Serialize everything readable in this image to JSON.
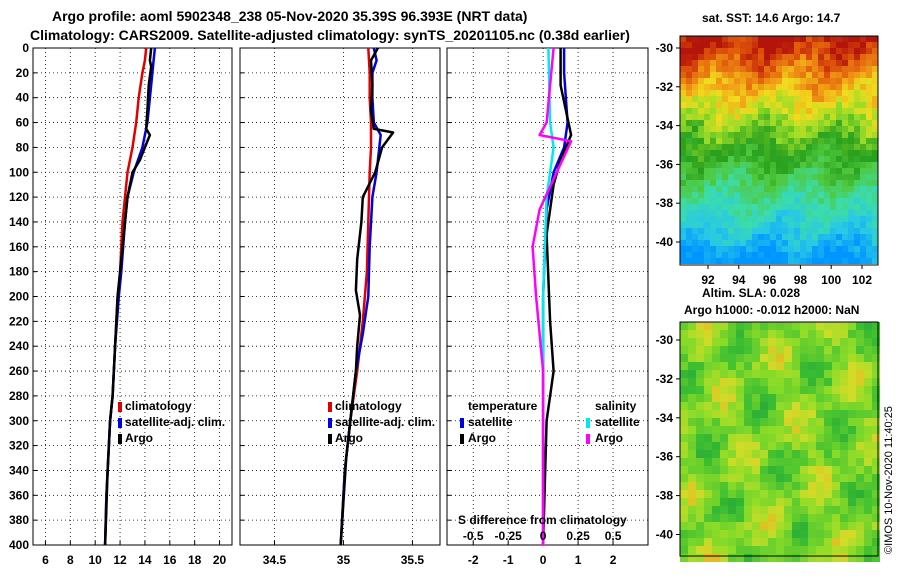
{
  "header": {
    "line1": "Argo profile: aoml 5902348_238 05-Nov-2020 35.39S 96.393E (NRT data)",
    "line2": "Climatology: CARS2009. Satellite-adjusted climatology: synTS_20201105.nc (0.38d earlier)"
  },
  "colors": {
    "climatology": "#e00000",
    "satellite": "#0000e0",
    "argo": "#000000",
    "sat_salinity": "#00e8f0",
    "argo_salinity": "#ff00ff"
  },
  "chart_data": [
    {
      "type": "line",
      "name": "temperature-profile",
      "xlim": [
        5,
        21
      ],
      "ylim": [
        400,
        0
      ],
      "xticks": [
        6,
        8,
        10,
        12,
        14,
        16,
        18,
        20
      ],
      "yticks": [
        0,
        20,
        40,
        60,
        80,
        100,
        120,
        140,
        160,
        180,
        200,
        220,
        240,
        260,
        280,
        300,
        320,
        340,
        360,
        380,
        400
      ],
      "legend": [
        "climatology",
        "satellite-adj. clim.",
        "Argo"
      ],
      "series": [
        {
          "name": "climatology",
          "color": "climatology",
          "points": [
            [
              14.1,
              0
            ],
            [
              14.0,
              10
            ],
            [
              13.8,
              20
            ],
            [
              13.5,
              40
            ],
            [
              13.3,
              60
            ],
            [
              13.0,
              80
            ],
            [
              12.6,
              100
            ],
            [
              12.4,
              120
            ],
            [
              12.2,
              140
            ],
            [
              12.0,
              180
            ],
            [
              11.8,
              200
            ],
            [
              11.6,
              240
            ],
            [
              11.4,
              280
            ],
            [
              11.2,
              300
            ],
            [
              11.1,
              320
            ],
            [
              10.9,
              360
            ],
            [
              10.8,
              400
            ]
          ]
        },
        {
          "name": "satellite-adj. clim.",
          "color": "satellite",
          "points": [
            [
              14.8,
              0
            ],
            [
              14.7,
              10
            ],
            [
              14.6,
              20
            ],
            [
              14.4,
              40
            ],
            [
              14.2,
              60
            ],
            [
              13.8,
              80
            ],
            [
              13.1,
              100
            ],
            [
              12.6,
              120
            ],
            [
              12.4,
              140
            ],
            [
              12.1,
              180
            ],
            [
              11.9,
              200
            ],
            [
              11.6,
              240
            ],
            [
              11.4,
              280
            ],
            [
              11.2,
              300
            ],
            [
              11.1,
              320
            ],
            [
              10.9,
              360
            ],
            [
              10.8,
              400
            ]
          ]
        },
        {
          "name": "Argo",
          "color": "argo",
          "points": [
            [
              14.5,
              0
            ],
            [
              14.4,
              10
            ],
            [
              14.5,
              15
            ],
            [
              14.3,
              30
            ],
            [
              14.2,
              50
            ],
            [
              14.1,
              65
            ],
            [
              14.4,
              70
            ],
            [
              14.0,
              80
            ],
            [
              13.6,
              90
            ],
            [
              13.0,
              100
            ],
            [
              12.6,
              120
            ],
            [
              12.3,
              150
            ],
            [
              12.0,
              180
            ],
            [
              11.8,
              200
            ],
            [
              11.6,
              240
            ],
            [
              11.4,
              280
            ],
            [
              11.2,
              300
            ],
            [
              11.0,
              340
            ],
            [
              10.9,
              370
            ],
            [
              10.8,
              400
            ]
          ]
        }
      ]
    },
    {
      "type": "line",
      "name": "salinity-profile",
      "xlim": [
        34.25,
        35.7
      ],
      "ylim": [
        400,
        0
      ],
      "xticks": [
        34.5,
        35,
        35.5
      ],
      "legend": [
        "climatology",
        "satellite-adj. clim.",
        "Argo"
      ],
      "series": [
        {
          "name": "climatology",
          "color": "climatology",
          "points": [
            [
              35.18,
              0
            ],
            [
              35.19,
              20
            ],
            [
              35.19,
              40
            ],
            [
              35.2,
              60
            ],
            [
              35.2,
              80
            ],
            [
              35.19,
              100
            ],
            [
              35.18,
              140
            ],
            [
              35.17,
              180
            ],
            [
              35.14,
              220
            ],
            [
              35.1,
              260
            ],
            [
              35.05,
              300
            ],
            [
              35.01,
              340
            ],
            [
              34.98,
              400
            ]
          ]
        },
        {
          "name": "satellite-adj. clim.",
          "color": "satellite",
          "points": [
            [
              35.22,
              0
            ],
            [
              35.24,
              10
            ],
            [
              35.21,
              20
            ],
            [
              35.21,
              40
            ],
            [
              35.22,
              60
            ],
            [
              35.27,
              70
            ],
            [
              35.26,
              80
            ],
            [
              35.24,
              100
            ],
            [
              35.21,
              120
            ],
            [
              35.19,
              160
            ],
            [
              35.18,
              200
            ],
            [
              35.14,
              230
            ],
            [
              35.09,
              260
            ],
            [
              35.05,
              300
            ],
            [
              35.01,
              340
            ],
            [
              34.98,
              400
            ]
          ]
        },
        {
          "name": "Argo",
          "color": "argo",
          "points": [
            [
              35.25,
              0
            ],
            [
              35.2,
              10
            ],
            [
              35.21,
              30
            ],
            [
              35.2,
              50
            ],
            [
              35.22,
              65
            ],
            [
              35.36,
              68
            ],
            [
              35.28,
              80
            ],
            [
              35.23,
              100
            ],
            [
              35.14,
              120
            ],
            [
              35.13,
              140
            ],
            [
              35.1,
              170
            ],
            [
              35.09,
              195
            ],
            [
              35.12,
              215
            ],
            [
              35.1,
              240
            ],
            [
              35.09,
              260
            ],
            [
              35.06,
              290
            ],
            [
              35.02,
              330
            ],
            [
              34.98,
              400
            ]
          ]
        }
      ]
    },
    {
      "type": "line",
      "name": "difference-from-climatology",
      "xlim": [
        -2.75,
        3
      ],
      "ylim": [
        400,
        0
      ],
      "xticks": [
        -2,
        -1,
        0,
        1,
        2
      ],
      "xtick_labels_s": [
        "-0.5",
        "-0.25",
        "0",
        "0.25",
        "0.5"
      ],
      "xlabel_s": "S difference from climatology",
      "legend_temperature": {
        "title": "temperature",
        "items": [
          "satellite",
          "Argo"
        ]
      },
      "legend_salinity": {
        "title": "salinity",
        "items": [
          "satellite",
          "Argo"
        ]
      },
      "series": [
        {
          "name": "temperature satellite",
          "color": "satellite",
          "points": [
            [
              0.6,
              0
            ],
            [
              0.6,
              20
            ],
            [
              0.7,
              60
            ],
            [
              0.6,
              80
            ],
            [
              0.3,
              100
            ],
            [
              0.1,
              130
            ],
            [
              0.0,
              200
            ],
            [
              0.0,
              400
            ]
          ]
        },
        {
          "name": "temperature Argo",
          "color": "argo",
          "points": [
            [
              0.5,
              0
            ],
            [
              0.5,
              30
            ],
            [
              0.8,
              70
            ],
            [
              0.5,
              90
            ],
            [
              0.3,
              110
            ],
            [
              0.1,
              150
            ],
            [
              0.2,
              220
            ],
            [
              0.3,
              260
            ],
            [
              0.1,
              300
            ],
            [
              0.0,
              400
            ]
          ]
        },
        {
          "name": "salinity satellite",
          "color": "sat_salinity",
          "points": [
            [
              0.15,
              0
            ],
            [
              0.2,
              60
            ],
            [
              0.3,
              80
            ],
            [
              0.1,
              120
            ],
            [
              0.0,
              200
            ],
            [
              0.0,
              400
            ]
          ]
        },
        {
          "name": "salinity Argo",
          "color": "argo_salinity",
          "points": [
            [
              0.3,
              0
            ],
            [
              0.1,
              60
            ],
            [
              -0.1,
              70
            ],
            [
              0.8,
              75
            ],
            [
              -0.1,
              130
            ],
            [
              -0.3,
              160
            ],
            [
              -0.2,
              200
            ],
            [
              0.0,
              260
            ],
            [
              0.0,
              400
            ]
          ]
        }
      ]
    },
    {
      "type": "heatmap",
      "name": "sst-map",
      "title": "sat. SST: 14.6 Argo: 14.7",
      "xticks": [
        92,
        94,
        96,
        98,
        100,
        102
      ],
      "yticks": [
        -30,
        -32,
        -34,
        -36,
        -38,
        -40
      ]
    },
    {
      "type": "heatmap",
      "name": "sla-map",
      "title": "Altim. SLA: 0.028",
      "subtitle": "Argo h1000: -0.012 h2000: NaN",
      "yticks": [
        -30,
        -32,
        -34,
        -36,
        -38,
        -40
      ]
    }
  ],
  "credit": "©IMOS 10-Nov-2020 11:40:25"
}
